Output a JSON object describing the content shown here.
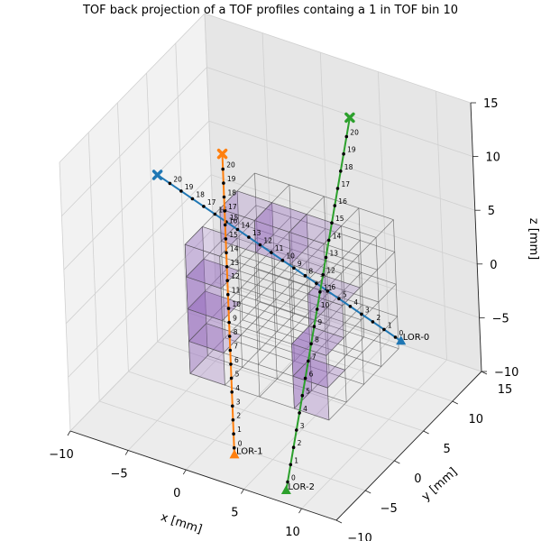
{
  "chart_data": {
    "type": "scatter",
    "projection": "3d",
    "title": "TOF back projection of a TOF profiles containg a 1 in TOF bin 10",
    "xlabel": "x [mm]",
    "ylabel": "y [mm]",
    "zlabel": "z [mm]",
    "xlim": [
      -10,
      13
    ],
    "ylim": [
      -10,
      15
    ],
    "zlim": [
      -10,
      15
    ],
    "xticks": [
      "−10",
      "−5",
      "0",
      "5",
      "10"
    ],
    "yticks": [
      "−10",
      "−5",
      "0",
      "5",
      "10",
      "15"
    ],
    "zticks": [
      "−10",
      "−5",
      "0",
      "5",
      "10",
      "15"
    ],
    "grid": true,
    "colors": {
      "lor0": "#1f77b4",
      "lor1": "#ff7f0e",
      "lor2": "#2ca02c",
      "voxel_fill": "#9467bd",
      "voxel_edge": "#555555"
    },
    "series": [
      {
        "name": "LOR-0",
        "start": [
          14.0,
          0.0,
          1.5
        ],
        "end": [
          -11.0,
          8.0,
          3.5
        ],
        "start_marker": "triangle",
        "end_marker": "x",
        "tof_bins": [
          "0",
          "1",
          "2",
          "3",
          "4",
          "5",
          "6",
          "7",
          "8",
          "9",
          "10",
          "11",
          "12",
          "13",
          "14",
          "15",
          "16",
          "17",
          "18",
          "19",
          "20"
        ]
      },
      {
        "name": "LOR-1",
        "start": [
          -1.0,
          0.0,
          -14.5
        ],
        "end": [
          -1.0,
          0.0,
          13.5
        ],
        "start_marker": "triangle",
        "end_marker": "x",
        "tof_bins": [
          "0",
          "1",
          "2",
          "3",
          "4",
          "5",
          "6",
          "7",
          "8",
          "9",
          "10",
          "11",
          "12",
          "13",
          "14",
          "15",
          "16",
          "17",
          "18",
          "19",
          "20"
        ]
      },
      {
        "name": "LOR-2",
        "start": [
          5.0,
          -3.0,
          -14.0
        ],
        "end": [
          5.0,
          10.0,
          13.5
        ],
        "start_marker": "triangle",
        "end_marker": "x",
        "tof_bins": [
          "0",
          "1",
          "2",
          "3",
          "4",
          "5",
          "6",
          "7",
          "8",
          "9",
          "10",
          "11",
          "12",
          "13",
          "14",
          "15",
          "16",
          "17",
          "18",
          "19",
          "20"
        ]
      }
    ],
    "voxels": {
      "grid_x": [
        -3,
        0,
        3,
        6,
        9
      ],
      "grid_y": [
        -3,
        0,
        3,
        6,
        9
      ],
      "grid_z": [
        -6,
        -3,
        0,
        3,
        6
      ],
      "highlighted": [
        {
          "ix": 0,
          "iy": 0,
          "iz": 1,
          "value": 1.0
        },
        {
          "ix": 0,
          "iy": 0,
          "iz": 2,
          "value": 0.9
        },
        {
          "ix": 0,
          "iy": 0,
          "iz": 0,
          "value": 0.5
        },
        {
          "ix": 0,
          "iy": 0,
          "iz": 3,
          "value": 0.4
        },
        {
          "ix": 1,
          "iy": 2,
          "iz": 3,
          "value": 0.8
        },
        {
          "ix": 2,
          "iy": 2,
          "iz": 3,
          "value": 0.5
        },
        {
          "ix": 0,
          "iy": 2,
          "iz": 3,
          "value": 0.4
        },
        {
          "ix": 3,
          "iy": 0,
          "iz": 1,
          "value": 0.9
        },
        {
          "ix": 3,
          "iy": 0,
          "iz": 0,
          "value": 0.6
        },
        {
          "ix": 3,
          "iy": 1,
          "iz": 2,
          "value": 0.4
        }
      ]
    }
  }
}
